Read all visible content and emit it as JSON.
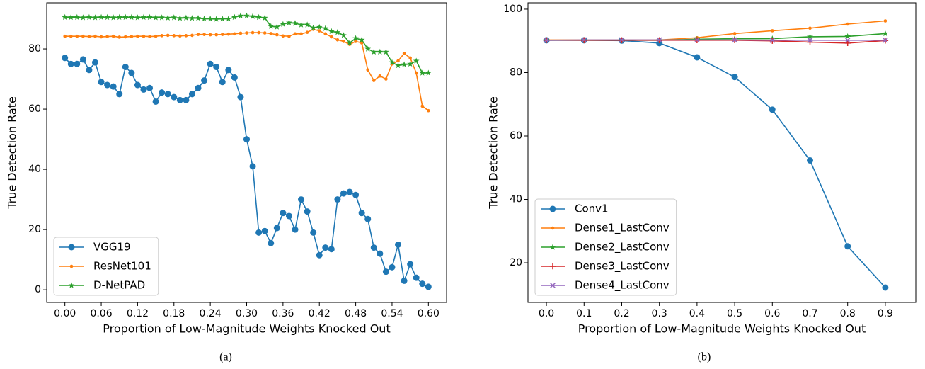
{
  "chart_data": [
    {
      "type": "line",
      "caption": "(a)",
      "xlabel": "Proportion of Low-Magnitude Weights Knocked Out",
      "ylabel": "True Detection Rate",
      "x": [
        0,
        0.01,
        0.02,
        0.03,
        0.04,
        0.05,
        0.06,
        0.07,
        0.08,
        0.09,
        0.1,
        0.11,
        0.12,
        0.13,
        0.14,
        0.15,
        0.16,
        0.17,
        0.18,
        0.19,
        0.2,
        0.21,
        0.22,
        0.23,
        0.24,
        0.25,
        0.26,
        0.27,
        0.28,
        0.29,
        0.3,
        0.31,
        0.32,
        0.33,
        0.34,
        0.35,
        0.36,
        0.37,
        0.38,
        0.39,
        0.4,
        0.41,
        0.42,
        0.43,
        0.44,
        0.45,
        0.46,
        0.47,
        0.48,
        0.49,
        0.5,
        0.51,
        0.52,
        0.53,
        0.54,
        0.55,
        0.56,
        0.57,
        0.58,
        0.59,
        0.6
      ],
      "series": [
        {
          "name": "VGG19",
          "color": "#1f77b4",
          "marker": "circle",
          "values": [
            77,
            75,
            75,
            76.5,
            73,
            75.5,
            69,
            68,
            67.5,
            65,
            74,
            72,
            68,
            66.5,
            67,
            62.5,
            65.5,
            65,
            64,
            63,
            63,
            65,
            67,
            69.5,
            75,
            74,
            69,
            73,
            70.5,
            64,
            50,
            41,
            19,
            19.5,
            15.5,
            20.5,
            25.5,
            24.5,
            20,
            30,
            26,
            19,
            11.5,
            14,
            13.5,
            30,
            32,
            32.5,
            31.5,
            25.5,
            23.5,
            14,
            12,
            6,
            7.5,
            15,
            3,
            8.5,
            4,
            2,
            1
          ]
        },
        {
          "name": "ResNet101",
          "color": "#ff7f0e",
          "marker": "dot",
          "values": [
            84.2,
            84.2,
            84.2,
            84.2,
            84.1,
            84.2,
            84,
            84.1,
            84.2,
            83.9,
            84,
            84.1,
            84.2,
            84.2,
            84.1,
            84.2,
            84.4,
            84.5,
            84.4,
            84.3,
            84.4,
            84.5,
            84.8,
            84.8,
            84.7,
            84.7,
            84.8,
            84.9,
            85,
            85.2,
            85.3,
            85.4,
            85.4,
            85.3,
            85.1,
            84.7,
            84.3,
            84.2,
            85,
            85,
            85.5,
            86.5,
            86,
            85,
            84,
            83,
            82.5,
            81.5,
            82.5,
            82,
            73,
            69.5,
            71,
            70,
            75,
            76,
            78.5,
            77,
            72,
            61,
            59.5
          ]
        },
        {
          "name": "D-NetPAD",
          "color": "#2ca02c",
          "marker": "star",
          "values": [
            90.5,
            90.5,
            90.5,
            90.4,
            90.5,
            90.4,
            90.5,
            90.5,
            90.4,
            90.5,
            90.5,
            90.5,
            90.4,
            90.5,
            90.5,
            90.4,
            90.4,
            90.3,
            90.4,
            90.2,
            90.3,
            90.2,
            90.2,
            90,
            90,
            89.9,
            90,
            90,
            90.5,
            91,
            91,
            90.8,
            90.5,
            90.3,
            87.5,
            87.3,
            88.2,
            88.7,
            88.5,
            88,
            88,
            87,
            87.2,
            86.8,
            85.8,
            85.5,
            84.5,
            82,
            83.5,
            83,
            80,
            79,
            79,
            79,
            75.5,
            74.5,
            74.8,
            75,
            76,
            72,
            72
          ]
        }
      ],
      "xlim": [
        -0.03,
        0.63
      ],
      "ylim": [
        -4.2,
        95.3
      ],
      "xticks": [
        {
          "value": 0,
          "label": "0.00"
        },
        0.06,
        0.12,
        0.18,
        0.24,
        {
          "value": 0.3,
          "label": "0.30"
        },
        0.36,
        0.42,
        0.48,
        0.54,
        {
          "value": 0.6,
          "label": "0.60"
        }
      ],
      "yticks": [
        0,
        20,
        40,
        60,
        80
      ],
      "grid": false,
      "legend": "lower left"
    },
    {
      "type": "line",
      "caption": "(b)",
      "xlabel": "Proportion of Low-Magnitude Weights Knocked Out",
      "ylabel": "True Detection Rate",
      "x": [
        0,
        0.1,
        0.2,
        0.3,
        0.4,
        0.5,
        0.6,
        0.7,
        0.8,
        0.9
      ],
      "series": [
        {
          "name": "Conv1",
          "color": "#1f77b4",
          "marker": "circle",
          "values": [
            90.2,
            90.2,
            90.1,
            89.3,
            84.8,
            78.6,
            68.3,
            52.3,
            25.2,
            12.2
          ]
        },
        {
          "name": "Dense1_LastConv",
          "color": "#ff7f0e",
          "marker": "dot",
          "values": [
            90.3,
            90.3,
            90.3,
            90.3,
            91,
            92.3,
            93.2,
            94,
            95.3,
            96.3
          ]
        },
        {
          "name": "Dense2_LastConv",
          "color": "#2ca02c",
          "marker": "star",
          "values": [
            90.2,
            90.2,
            90.2,
            90.2,
            90.5,
            90.7,
            90.7,
            91.3,
            91.4,
            92.3
          ]
        },
        {
          "name": "Dense3_LastConv",
          "color": "#d62728",
          "marker": "plus",
          "values": [
            90.2,
            90.2,
            90.2,
            90.2,
            90.2,
            90.2,
            90,
            89.6,
            89.3,
            90.1
          ]
        },
        {
          "name": "Dense4_LastConv",
          "color": "#9467bd",
          "marker": "x",
          "values": [
            90.2,
            90.3,
            90.3,
            90.3,
            90.3,
            90.3,
            90.2,
            90.2,
            90.2,
            90.2
          ]
        }
      ],
      "xlim": [
        -0.049,
        0.981
      ],
      "ylim": [
        7.5,
        102
      ],
      "xticks": [
        {
          "value": 0,
          "label": "0.0"
        },
        0.1,
        0.2,
        0.3,
        0.4,
        0.5,
        0.6,
        0.7,
        0.8,
        0.9
      ],
      "yticks": [
        20,
        40,
        60,
        80,
        100
      ],
      "grid": false,
      "legend": "lower left"
    }
  ]
}
